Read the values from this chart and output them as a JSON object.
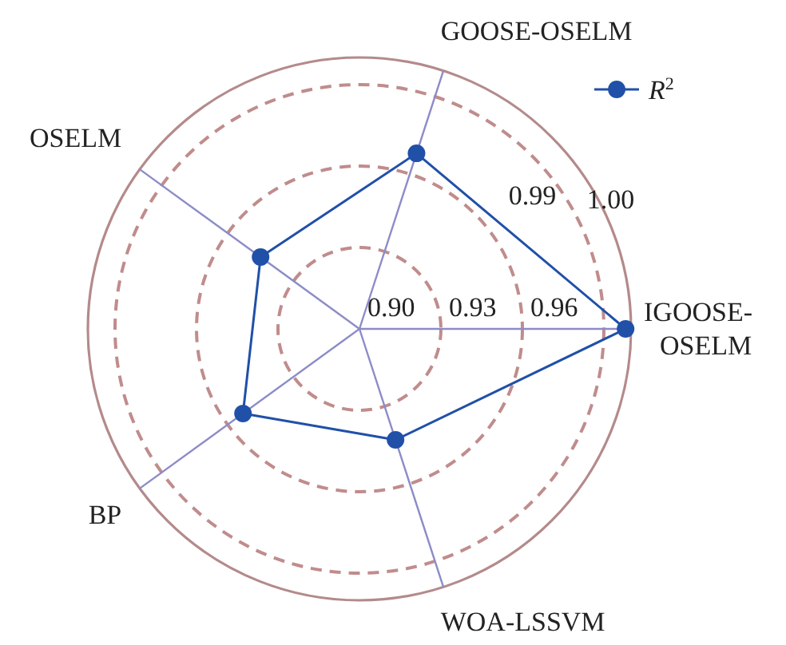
{
  "chart_data": {
    "type": "radar",
    "categories": [
      "IGOOSE-OSELM",
      "WOA-LSSVM",
      "BP",
      "OSELM",
      "GOOSE-OSELM"
    ],
    "series": [
      {
        "name": "R$^{2}$",
        "color": "#2050a8",
        "values": [
          0.998,
          0.943,
          0.953,
          0.945,
          0.968
        ]
      }
    ],
    "ylim": [
      0.9,
      1.0
    ],
    "yticks": [
      {
        "value": 0.9,
        "label": "0.90"
      },
      0.93,
      0.96,
      0.99,
      {
        "value": 1.0,
        "label": "1.00"
      }
    ],
    "grid": true,
    "legend": "top right",
    "marker": "circle",
    "line_style": "solid"
  }
}
